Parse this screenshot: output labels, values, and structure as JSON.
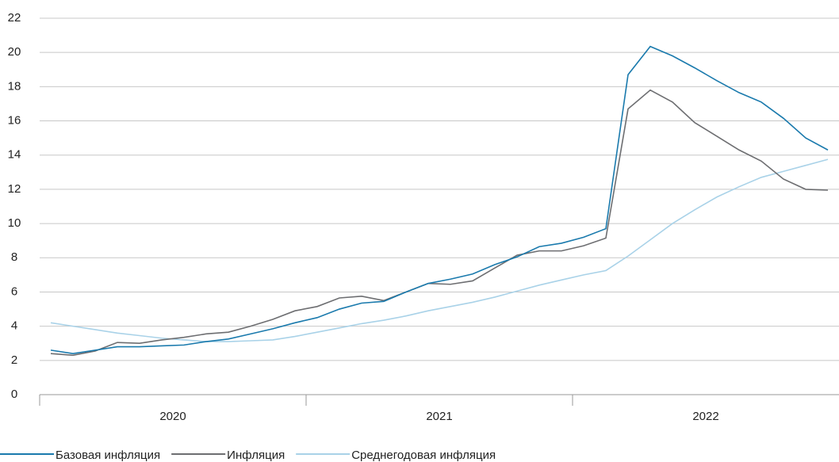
{
  "chart_data": {
    "type": "line",
    "categories": [
      null,
      null,
      null,
      null,
      null,
      null,
      null,
      null,
      null,
      null,
      null,
      null,
      null,
      null,
      null,
      null,
      null,
      null,
      null,
      null,
      null,
      null,
      null,
      null,
      null,
      null,
      null,
      null,
      null,
      null,
      null,
      null,
      null,
      null,
      null,
      null
    ],
    "category_groups": [
      "2020",
      "2021",
      "2022"
    ],
    "series": [
      {
        "name": "Базовая инфляция",
        "color": "#1a7aad",
        "values": [
          2.6,
          2.4,
          2.6,
          2.8,
          2.8,
          2.85,
          2.9,
          3.1,
          3.25,
          3.55,
          3.85,
          4.2,
          4.5,
          5.0,
          5.35,
          5.45,
          6.0,
          6.5,
          6.75,
          7.05,
          7.6,
          8.05,
          8.65,
          8.85,
          9.2,
          9.7,
          18.7,
          20.35,
          19.8,
          19.1,
          18.35,
          17.65,
          17.1,
          16.15,
          15.0,
          14.3
        ]
      },
      {
        "name": "Инфляция",
        "color": "#6d6e71",
        "values": [
          2.4,
          2.3,
          2.55,
          3.05,
          3.0,
          3.2,
          3.35,
          3.55,
          3.65,
          4.0,
          4.4,
          4.9,
          5.15,
          5.65,
          5.75,
          5.5,
          6.0,
          6.5,
          6.45,
          6.65,
          7.4,
          8.15,
          8.4,
          8.4,
          8.7,
          9.15,
          16.7,
          17.8,
          17.1,
          15.9,
          15.1,
          14.3,
          13.65,
          12.6,
          12.0,
          11.95
        ]
      },
      {
        "name": "Среднегодовая инфляция",
        "color": "#a9d2e8",
        "values": [
          4.2,
          4.0,
          3.8,
          3.6,
          3.45,
          3.3,
          3.2,
          3.1,
          3.1,
          3.15,
          3.2,
          3.4,
          3.65,
          3.9,
          4.15,
          4.35,
          4.6,
          4.9,
          5.15,
          5.4,
          5.7,
          6.05,
          6.4,
          6.7,
          7.0,
          7.25,
          8.1,
          9.05,
          10.0,
          10.8,
          11.55,
          12.15,
          12.7,
          13.05,
          13.4,
          13.75
        ]
      }
    ],
    "ylim": [
      0,
      22
    ],
    "yticks": [
      0,
      2,
      4,
      6,
      8,
      10,
      12,
      14,
      16,
      18,
      20,
      22
    ],
    "grid": true,
    "legend": "bottom"
  }
}
